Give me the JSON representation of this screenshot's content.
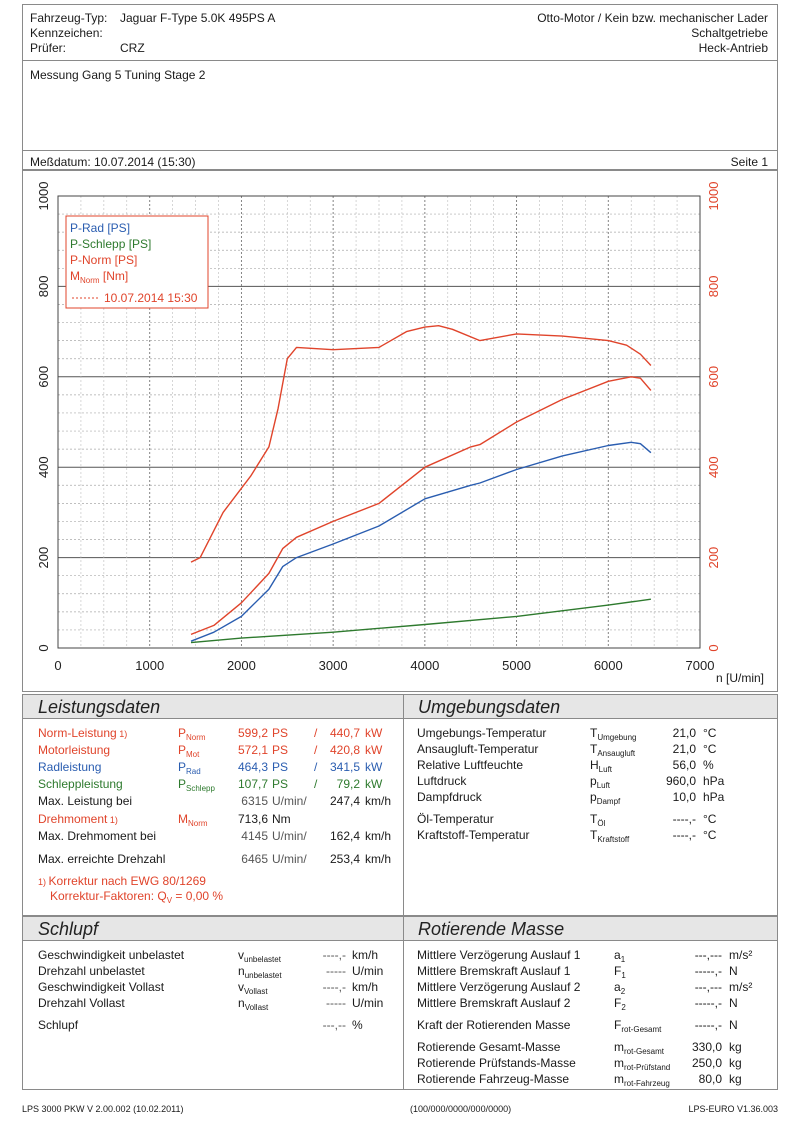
{
  "header": {
    "vehicle_type_label": "Fahrzeug-Typ:",
    "vehicle_type_value": "Jaguar F-Type 5.0K 495PS A",
    "plate_label": "Kennzeichen:",
    "tester_label": "Prüfer:",
    "tester_value": "CRZ",
    "engine": "Otto-Motor / Kein bzw. mechanischer Lader",
    "gearbox": "Schaltgetriebe",
    "drive": "Heck-Antrieb",
    "comment": "Messung Gang 5 Tuning Stage 2",
    "date_label": "Meßdatum: 10.07.2014 (15:30)",
    "page_label": "Seite 1"
  },
  "chart_data": {
    "type": "line",
    "x_label": "n [U/min]",
    "x_ticks": [
      "0",
      "1000",
      "2000",
      "3000",
      "4000",
      "5000",
      "6000",
      "7000"
    ],
    "y_ticks_left": [
      "0",
      "200",
      "400",
      "600",
      "800",
      "1000"
    ],
    "y_ticks_right": [
      "0",
      "200",
      "400",
      "600",
      "800",
      "1000"
    ],
    "xlim": [
      0,
      7000
    ],
    "ylim": [
      0,
      1000
    ],
    "grid": true,
    "legend_position": "top-left",
    "legend": [
      {
        "label": "P-Rad [PS]",
        "color": "#2a5db0"
      },
      {
        "label": "P-Schlepp [PS]",
        "color": "#2e7a2e"
      },
      {
        "label": "P-Norm [PS]",
        "color": "#e0442b"
      },
      {
        "label": "M",
        "sub": "Norm",
        "suffix": " [Nm]",
        "color": "#e0442b"
      }
    ],
    "legend_date": "10.07.2014 15:30",
    "series": [
      {
        "name": "P-Rad [PS]",
        "color": "#2a5db0",
        "x": [
          1450,
          1700,
          2000,
          2300,
          2450,
          2600,
          3000,
          3500,
          4000,
          4500,
          4600,
          5000,
          5500,
          6000,
          6250,
          6350,
          6465
        ],
        "y": [
          15,
          35,
          70,
          130,
          180,
          200,
          230,
          270,
          330,
          360,
          365,
          395,
          425,
          448,
          455,
          452,
          432
        ]
      },
      {
        "name": "P-Schlepp [PS]",
        "color": "#2e7a2e",
        "x": [
          1450,
          2000,
          3000,
          4000,
          5000,
          6000,
          6465
        ],
        "y": [
          12,
          22,
          35,
          52,
          70,
          95,
          108
        ]
      },
      {
        "name": "P-Norm [PS]",
        "color": "#e0442b",
        "x": [
          1450,
          1700,
          2000,
          2300,
          2450,
          2600,
          3000,
          3500,
          4000,
          4500,
          4600,
          5000,
          5500,
          6000,
          6250,
          6350,
          6465
        ],
        "y": [
          30,
          50,
          100,
          165,
          220,
          245,
          280,
          320,
          400,
          445,
          450,
          500,
          550,
          590,
          600,
          597,
          570
        ]
      },
      {
        "name": "M Norm [Nm]",
        "color": "#e0442b",
        "x": [
          1450,
          1550,
          1800,
          2100,
          2300,
          2400,
          2500,
          2600,
          3000,
          3500,
          3800,
          4000,
          4150,
          4300,
          4600,
          5000,
          5500,
          6000,
          6200,
          6350,
          6465
        ],
        "y": [
          190,
          200,
          300,
          380,
          445,
          530,
          640,
          665,
          660,
          665,
          700,
          710,
          713,
          705,
          680,
          695,
          690,
          680,
          670,
          650,
          625
        ]
      }
    ]
  },
  "leistung": {
    "title": "Leistungsdaten",
    "rows": [
      {
        "label": "Norm-Leistung",
        "sup": "1)",
        "sym": "P",
        "sub": "Norm",
        "v1": "599,2",
        "u1": "PS",
        "v2": "440,7",
        "u2": "kW"
      },
      {
        "label": "Motorleistung",
        "sym": "P",
        "sub": "Mot",
        "v1": "572,1",
        "u1": "PS",
        "v2": "420,8",
        "u2": "kW"
      },
      {
        "label": "Radleistung",
        "sym": "P",
        "sub": "Rad",
        "v1": "464,3",
        "u1": "PS",
        "v2": "341,5",
        "u2": "kW"
      },
      {
        "label": "Schleppleistung",
        "sym": "P",
        "sub": "Schlepp",
        "v1": "107,7",
        "u1": "PS",
        "v2": "79,2",
        "u2": "kW"
      },
      {
        "label": "Max. Leistung bei",
        "v1": "6315",
        "u1": "U/min/",
        "v2": "247,4",
        "u2": "km/h"
      }
    ],
    "torque_label": "Drehmoment",
    "torque_sup": "1)",
    "torque_sym": "M",
    "torque_sub": "Norm",
    "torque_value": "713,6",
    "torque_unit": "Nm",
    "maxtorque_label": "Max. Drehmoment bei",
    "maxtorque_rpm": "4145",
    "maxtorque_u1": "U/min/",
    "maxtorque_speed": "162,4",
    "maxtorque_u2": "km/h",
    "maxrpm_label": "Max. erreichte Drehzahl",
    "maxrpm_rpm": "6465",
    "maxrpm_u1": "U/min/",
    "maxrpm_speed": "253,4",
    "maxrpm_u2": "km/h",
    "correction_sup": "1)",
    "correction": "Korrektur nach EWG 80/1269",
    "factors_label": "Korrektur-Faktoren: Q",
    "factors_sub": "V",
    "factors_value": "=   0,00 %"
  },
  "umgebung": {
    "title": "Umgebungsdaten",
    "rows": [
      {
        "label": "Umgebungs-Temperatur",
        "sym": "T",
        "sub": "Umgebung",
        "value": "21,0",
        "unit": "°C"
      },
      {
        "label": "Ansaugluft-Temperatur",
        "sym": "T",
        "sub": "Ansaugluft",
        "value": "21,0",
        "unit": "°C"
      },
      {
        "label": "Relative Luftfeuchte",
        "sym": "H",
        "sub": "Luft",
        "value": "56,0",
        "unit": "%"
      },
      {
        "label": "Luftdruck",
        "sym": "p",
        "sub": "Luft",
        "value": "960,0",
        "unit": "hPa"
      },
      {
        "label": "Dampfdruck",
        "sym": "p",
        "sub": "Dampf",
        "value": "10,0",
        "unit": "hPa"
      },
      {
        "label": "Öl-Temperatur",
        "sym": "T",
        "sub": "Öl",
        "value": "----,-",
        "unit": "°C"
      },
      {
        "label": "Kraftstoff-Temperatur",
        "sym": "T",
        "sub": "Kraftstoff",
        "value": "----,-",
        "unit": "°C"
      }
    ]
  },
  "schlupf": {
    "title": "Schlupf",
    "rows": [
      {
        "label": "Geschwindigkeit unbelastet",
        "sym": "v",
        "sub": "unbelastet",
        "value": "----,-",
        "unit": "km/h"
      },
      {
        "label": "Drehzahl unbelastet",
        "sym": "n",
        "sub": "unbelastet",
        "value": "-----",
        "unit": "U/min"
      },
      {
        "label": "Geschwindigkeit Vollast",
        "sym": "v",
        "sub": "Vollast",
        "value": "----,-",
        "unit": "km/h"
      },
      {
        "label": "Drehzahl Vollast",
        "sym": "n",
        "sub": "Vollast",
        "value": "-----",
        "unit": "U/min"
      },
      {
        "label": "Schlupf",
        "value": "---,--",
        "unit": "%"
      }
    ]
  },
  "rotierend": {
    "title": "Rotierende Masse",
    "rows": [
      {
        "label": "Mittlere Verzögerung Auslauf 1",
        "sym": "a",
        "sub": "1",
        "value": "---,---",
        "unit": "m/s²"
      },
      {
        "label": "Mittlere Bremskraft Auslauf 1",
        "sym": "F",
        "sub": "1",
        "value": "-----,-",
        "unit": "N"
      },
      {
        "label": "Mittlere Verzögerung Auslauf 2",
        "sym": "a",
        "sub": "2",
        "value": "---,---",
        "unit": "m/s²"
      },
      {
        "label": "Mittlere Bremskraft Auslauf 2",
        "sym": "F",
        "sub": "2",
        "value": "-----,-",
        "unit": "N"
      },
      {
        "label": "Kraft der Rotierenden Masse",
        "sym": "F",
        "sub": "rot-Gesamt",
        "value": "-----,-",
        "unit": "N"
      },
      {
        "label": "Rotierende Gesamt-Masse",
        "sym": "m",
        "sub": "rot-Gesamt",
        "value": "330,0",
        "unit": "kg"
      },
      {
        "label": "Rotierende Prüfstands-Masse",
        "sym": "m",
        "sub": "rot-Prüfstand",
        "value": "250,0",
        "unit": "kg"
      },
      {
        "label": "Rotierende Fahrzeug-Masse",
        "sym": "m",
        "sub": "rot-Fahrzeug",
        "value": "80,0",
        "unit": "kg"
      }
    ]
  },
  "footer": {
    "left": "LPS 3000 PKW V 2.00.002 (10.02.2011)",
    "center": "(100/000/0000/000/0000)",
    "right": "LPS-EURO V1.36.003"
  }
}
